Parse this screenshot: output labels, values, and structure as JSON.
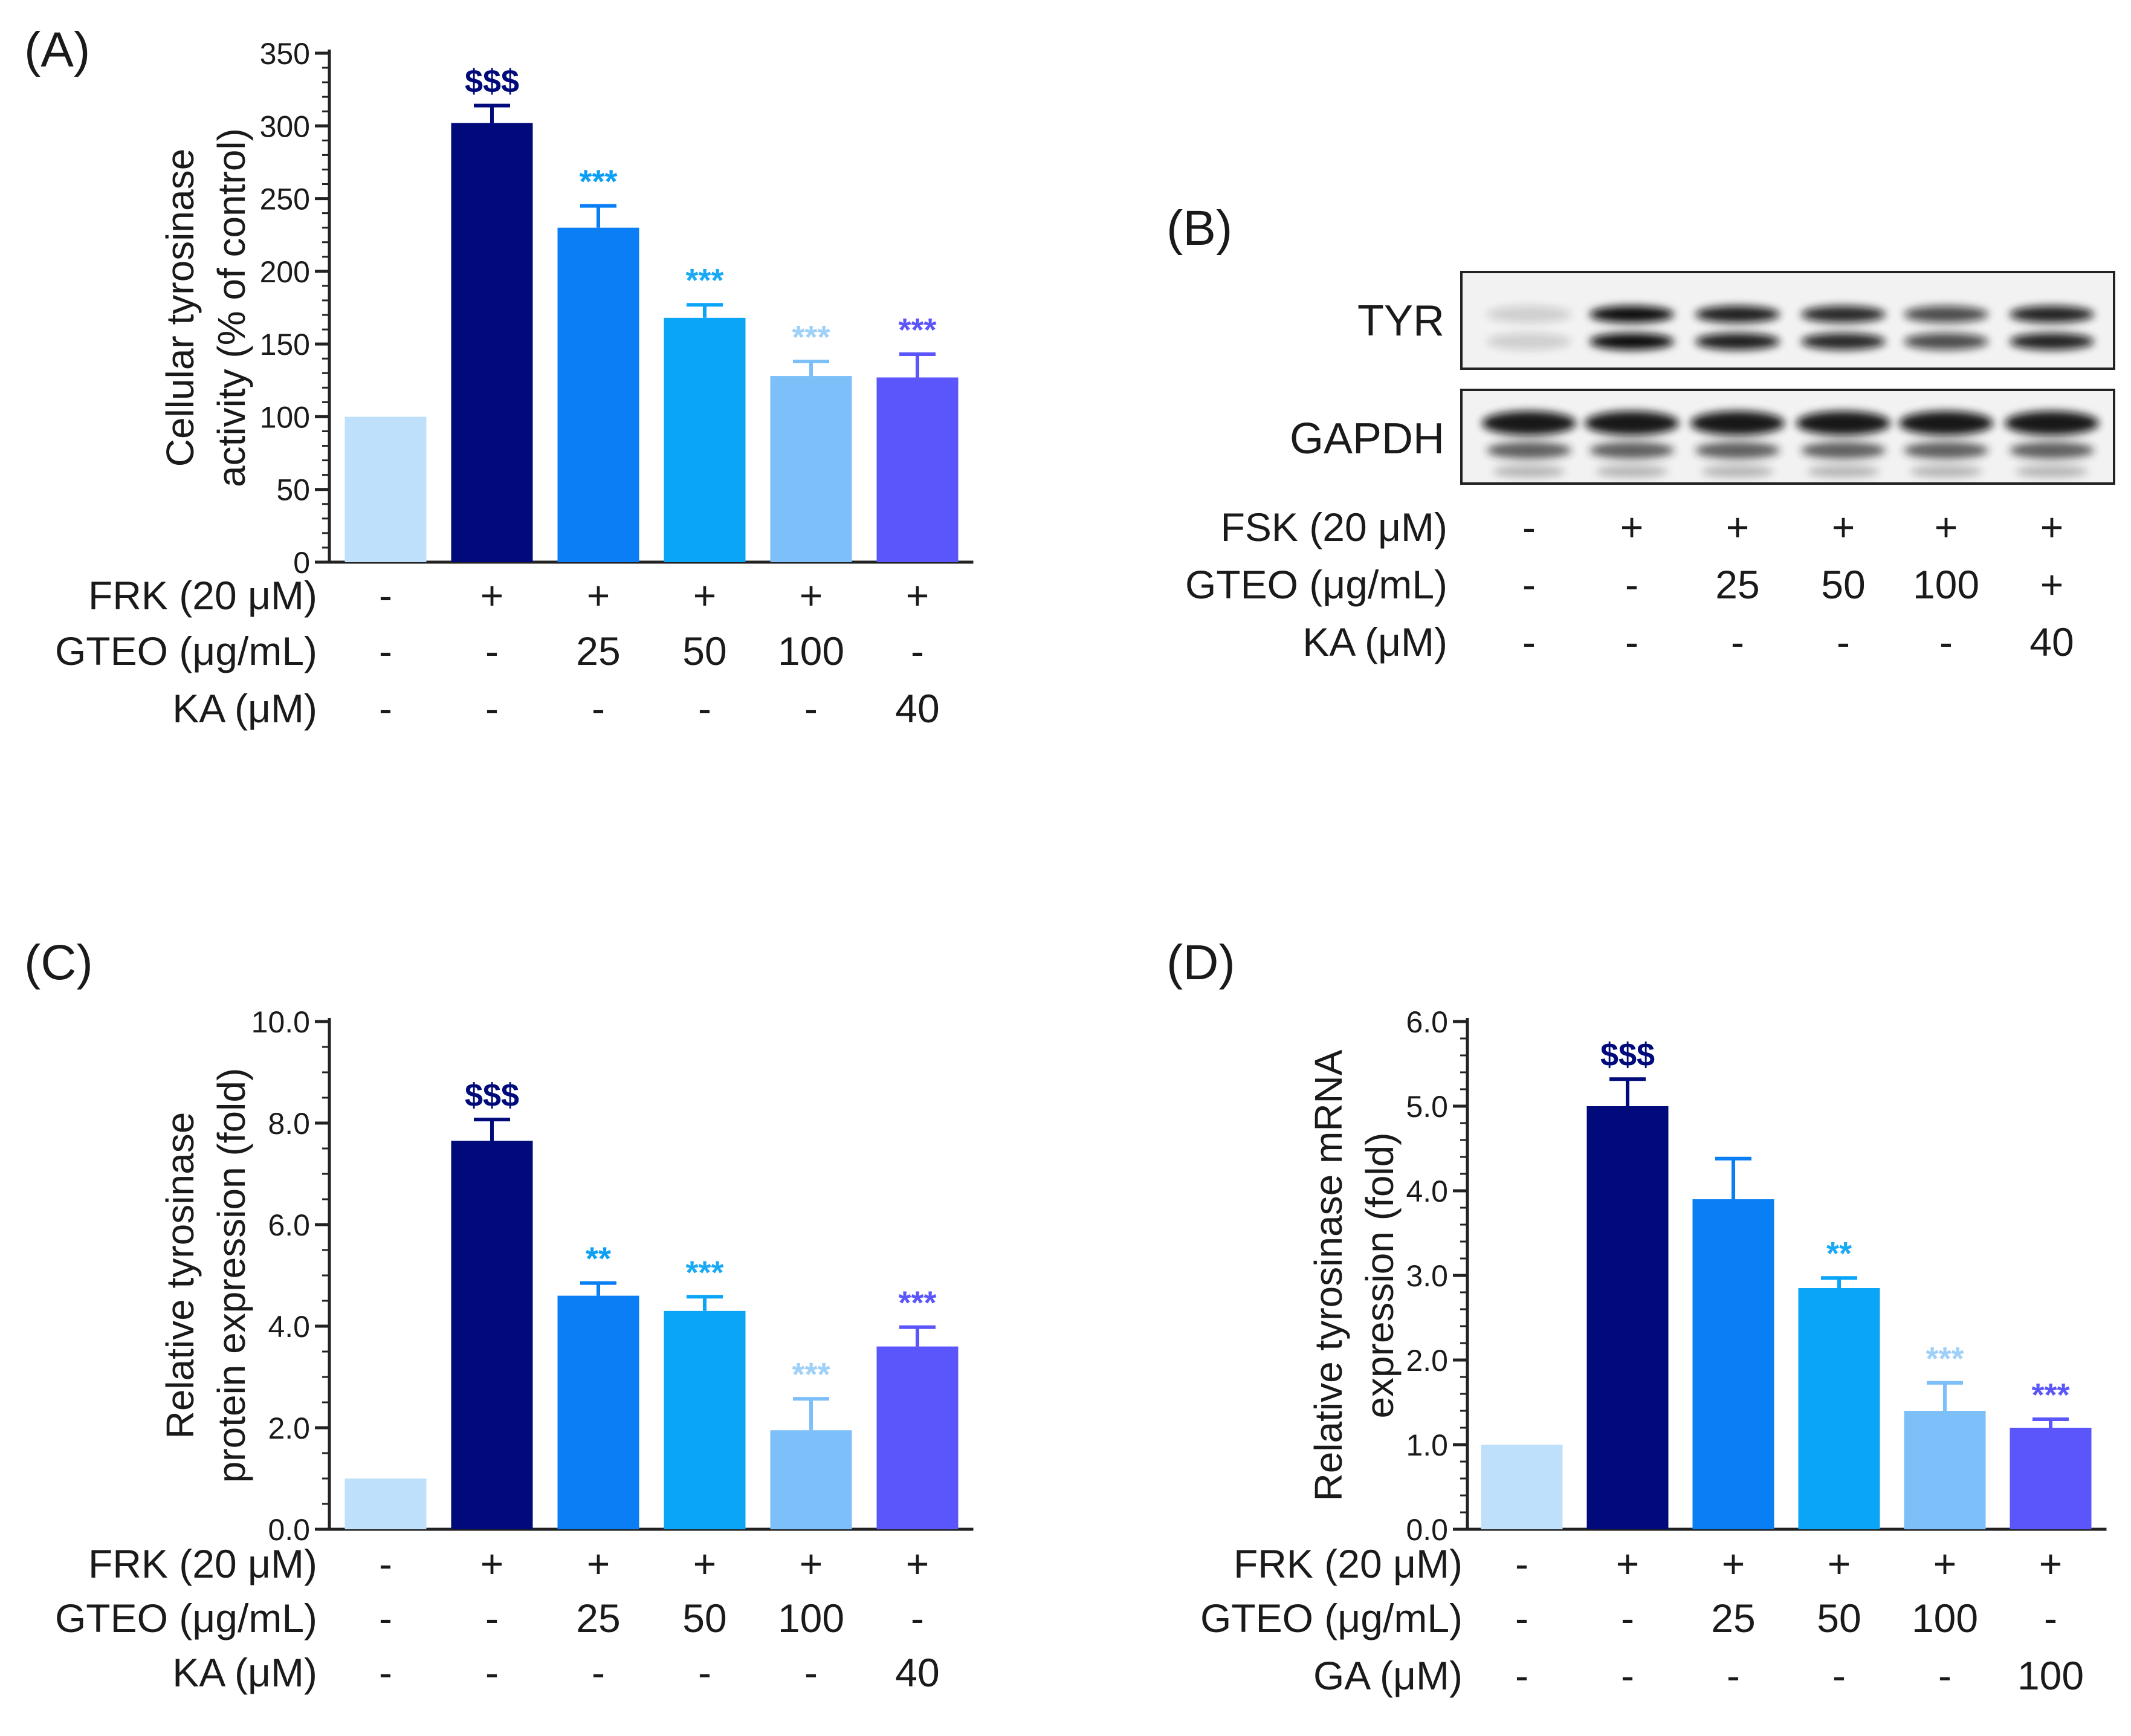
{
  "colors": [
    "#bfe0fa",
    "#000a7a",
    "#0a7ff5",
    "#0aa5f7",
    "#7dbff8",
    "#5b55fc"
  ],
  "chart_data": [
    {
      "id": "A",
      "panel_label": "(A)",
      "type": "bar",
      "ylabel_lines": [
        "Cellular tyrosinase",
        "activity (% of control)"
      ],
      "ylim": [
        0,
        350
      ],
      "major_ticks": [
        0,
        50,
        100,
        150,
        200,
        250,
        300,
        350
      ],
      "minor_step": 10,
      "tick_labels": [
        "0",
        "50",
        "100",
        "150",
        "200",
        "250",
        "300",
        "350"
      ],
      "values": [
        100,
        302,
        230,
        168,
        128,
        127
      ],
      "errors": [
        0,
        12,
        15,
        9,
        10,
        16
      ],
      "annotations": [
        "",
        "$$$",
        "***",
        "***",
        "***",
        "***"
      ],
      "annotation_colors": [
        "",
        "#000a7a",
        "#0a9ff5",
        "#1aaaf5",
        "#9fd0f8",
        "#5b55fc"
      ],
      "treatment_rows": [
        {
          "label": "FRK (20 μM)",
          "values": [
            "-",
            "+",
            "+",
            "+",
            "+",
            "+"
          ]
        },
        {
          "label": "GTEO (μg/mL)",
          "values": [
            "-",
            "-",
            "25",
            "50",
            "100",
            "-"
          ]
        },
        {
          "label": "KA (μM)",
          "values": [
            "-",
            "-",
            "-",
            "-",
            "-",
            "40"
          ]
        }
      ]
    },
    {
      "id": "C",
      "panel_label": "(C)",
      "type": "bar",
      "ylabel_lines": [
        "Relative tyrosinase",
        "protein expression (fold)"
      ],
      "ylim": [
        0,
        10
      ],
      "major_ticks": [
        0,
        2,
        4,
        6,
        8,
        10
      ],
      "minor_step": 0.5,
      "tick_labels": [
        "0.0",
        "2.0",
        "4.0",
        "6.0",
        "8.0",
        "10.0"
      ],
      "values": [
        1.0,
        7.65,
        4.6,
        4.3,
        1.95,
        3.6
      ],
      "errors": [
        0,
        0.42,
        0.25,
        0.28,
        0.62,
        0.38
      ],
      "annotations": [
        "",
        "$$$",
        "**",
        "***",
        "***",
        "***"
      ],
      "annotation_colors": [
        "",
        "#000a7a",
        "#0a9ff5",
        "#1aaaf5",
        "#9fd0f8",
        "#5b55fc"
      ],
      "treatment_rows": [
        {
          "label": "FRK (20 μM)",
          "values": [
            "-",
            "+",
            "+",
            "+",
            "+",
            "+"
          ]
        },
        {
          "label": "GTEO (μg/mL)",
          "values": [
            "-",
            "-",
            "25",
            "50",
            "100",
            "-"
          ]
        },
        {
          "label": "KA (μM)",
          "values": [
            "-",
            "-",
            "-",
            "-",
            "-",
            "40"
          ]
        }
      ]
    },
    {
      "id": "D",
      "panel_label": "(D)",
      "type": "bar",
      "ylabel_lines": [
        "Relative tyrosinase mRNA",
        "expression (fold)"
      ],
      "ylim": [
        0,
        6
      ],
      "major_ticks": [
        0,
        1,
        2,
        3,
        4,
        5,
        6
      ],
      "minor_step": 0.2,
      "tick_labels": [
        "0.0",
        "1.0",
        "2.0",
        "3.0",
        "4.0",
        "5.0",
        "6.0"
      ],
      "values": [
        1.0,
        5.0,
        3.9,
        2.85,
        1.4,
        1.2
      ],
      "errors": [
        0,
        0.32,
        0.48,
        0.12,
        0.33,
        0.1
      ],
      "annotations": [
        "",
        "$$$",
        "",
        "**",
        "***",
        "***"
      ],
      "annotation_colors": [
        "",
        "#000a7a",
        "",
        "#1aaaf5",
        "#9fd0f8",
        "#5b55fc"
      ],
      "treatment_rows": [
        {
          "label": "FRK (20 μM)",
          "values": [
            "-",
            "+",
            "+",
            "+",
            "+",
            "+"
          ]
        },
        {
          "label": "GTEO (μg/mL)",
          "values": [
            "-",
            "-",
            "25",
            "50",
            "100",
            "-"
          ]
        },
        {
          "label": "GA (μM)",
          "values": [
            "-",
            "-",
            "-",
            "-",
            "-",
            "100"
          ]
        }
      ]
    }
  ],
  "western_blot": {
    "panel_label": "(B)",
    "band_labels": [
      "TYR",
      "GAPDH"
    ],
    "treatment_rows": [
      {
        "label": "FSK (20 μM)",
        "values": [
          "-",
          "+",
          "+",
          "+",
          "+",
          "+"
        ]
      },
      {
        "label": "GTEO (μg/mL)",
        "values": [
          "-",
          "-",
          "25",
          "50",
          "100",
          "+"
        ]
      },
      {
        "label": "KA (μM)",
        "values": [
          "-",
          "-",
          "-",
          "-",
          "-",
          "40"
        ]
      }
    ]
  }
}
